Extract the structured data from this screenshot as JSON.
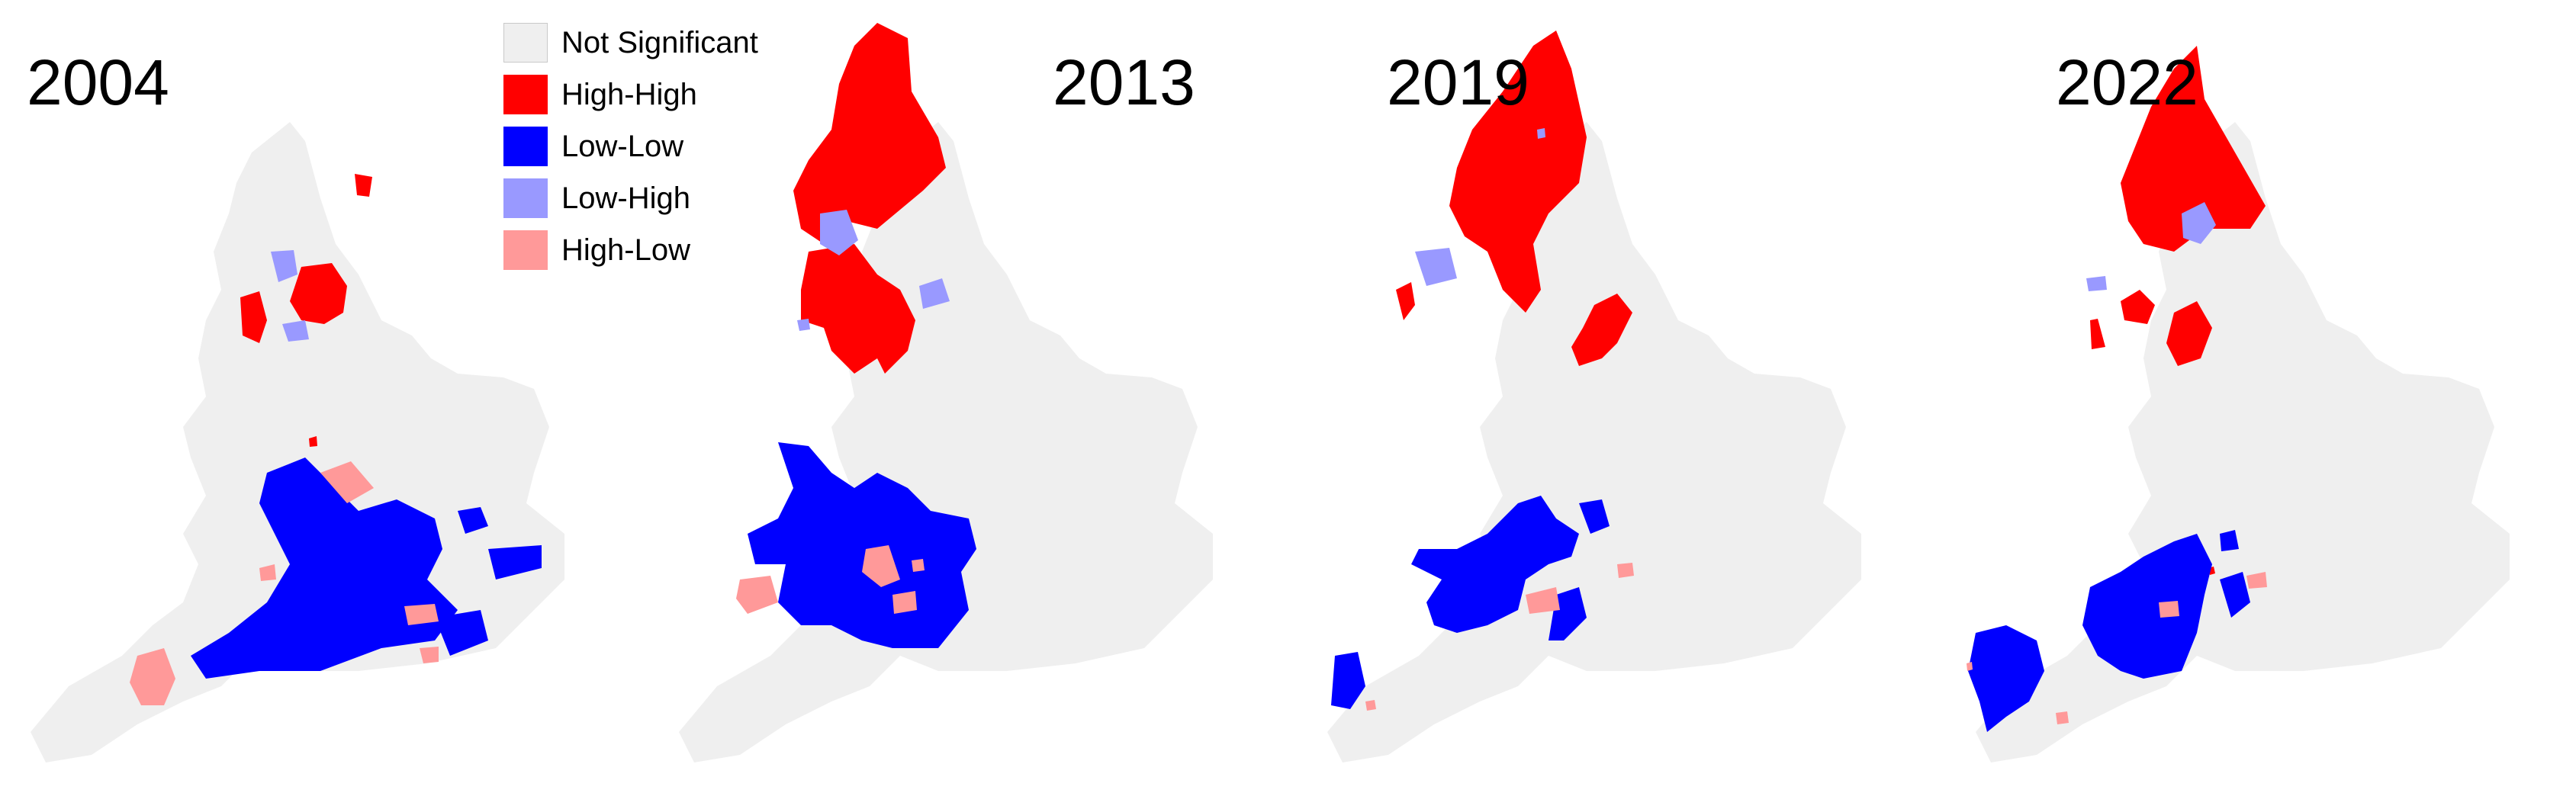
{
  "colors": {
    "not_significant": "#efefef",
    "high_high": "#ff0000",
    "low_low": "#0000ff",
    "low_high": "#9999ff",
    "high_low": "#ff9999"
  },
  "legend": {
    "items": [
      {
        "key": "not_significant",
        "label": "Not Significant"
      },
      {
        "key": "high_high",
        "label": "High-High"
      },
      {
        "key": "low_low",
        "label": "Low-Low"
      },
      {
        "key": "low_high",
        "label": "Low-High"
      },
      {
        "key": "high_low",
        "label": "High-Low"
      }
    ]
  },
  "maps": [
    {
      "year": "2004"
    },
    {
      "year": "2013"
    },
    {
      "year": "2019"
    },
    {
      "year": "2022"
    }
  ]
}
